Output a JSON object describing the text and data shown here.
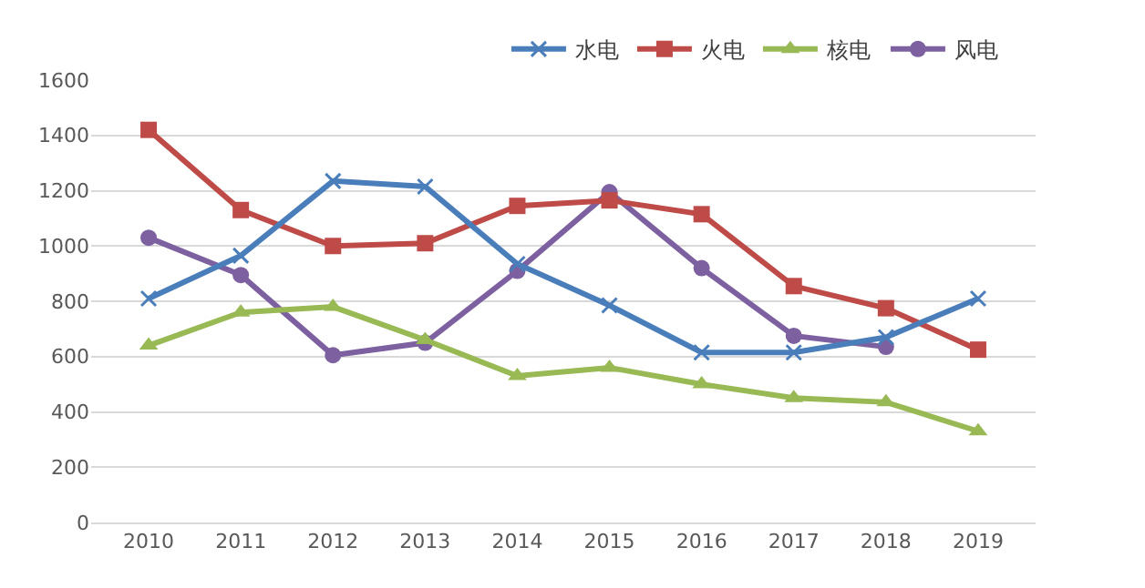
{
  "chart_data": {
    "type": "line",
    "categories": [
      "2010",
      "2011",
      "2012",
      "2013",
      "2014",
      "2015",
      "2016",
      "2017",
      "2018",
      "2019"
    ],
    "series": [
      {
        "name": "水电",
        "color": "#4a7ebb",
        "marker": "cross",
        "values": [
          810,
          965,
          1235,
          1215,
          935,
          785,
          615,
          615,
          670,
          810
        ]
      },
      {
        "name": "火电",
        "color": "#be4b48",
        "marker": "square",
        "values": [
          1420,
          1130,
          1000,
          1010,
          1145,
          1165,
          1115,
          855,
          775,
          625
        ]
      },
      {
        "name": "核电",
        "color": "#98b954",
        "marker": "triangle",
        "values": [
          640,
          760,
          780,
          660,
          530,
          560,
          500,
          450,
          435,
          330
        ]
      },
      {
        "name": "风电",
        "color": "#7d60a0",
        "marker": "circle",
        "values": [
          1030,
          895,
          605,
          650,
          910,
          1195,
          920,
          675,
          635,
          null
        ]
      }
    ],
    "ylim": [
      0,
      1600
    ],
    "yticks": [
      0,
      200,
      400,
      600,
      800,
      1000,
      1200,
      1400,
      1600
    ],
    "grid": "y",
    "legend": "top right",
    "line_style": "solid"
  }
}
